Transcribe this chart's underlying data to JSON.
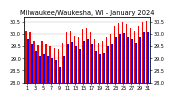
{
  "title": "Milwaukee/Waukesha, WI - January 2024",
  "ylim": [
    28.0,
    30.7
  ],
  "yticks": [
    28.0,
    28.5,
    29.0,
    29.5,
    30.0,
    30.5
  ],
  "days": [
    1,
    2,
    3,
    4,
    5,
    6,
    7,
    8,
    9,
    10,
    11,
    12,
    13,
    14,
    15,
    16,
    17,
    18,
    19,
    20,
    21,
    22,
    23,
    24,
    25,
    26,
    27,
    28,
    29,
    30,
    31
  ],
  "high_values": [
    30.12,
    30.06,
    29.72,
    29.55,
    29.7,
    29.58,
    29.5,
    29.42,
    29.38,
    29.62,
    30.08,
    30.12,
    29.92,
    29.88,
    30.18,
    30.22,
    30.08,
    29.78,
    29.62,
    29.72,
    29.88,
    29.98,
    30.32,
    30.42,
    30.48,
    30.38,
    30.22,
    30.12,
    30.32,
    30.48,
    30.52
  ],
  "low_values": [
    29.78,
    29.58,
    29.28,
    29.08,
    29.18,
    29.08,
    29.02,
    28.92,
    28.65,
    29.08,
    29.58,
    29.68,
    29.48,
    29.38,
    29.72,
    29.78,
    29.58,
    29.28,
    29.18,
    29.22,
    29.48,
    29.58,
    29.88,
    29.98,
    30.02,
    29.88,
    29.78,
    29.62,
    29.88,
    30.08,
    30.08
  ],
  "high_color": "#FF0000",
  "low_color": "#0000FF",
  "background_color": "#ffffff",
  "grid_color": "#bbbbbb",
  "title_fontsize": 4.8,
  "tick_fontsize": 3.5,
  "bar_width": 0.42,
  "xtick_days": [
    1,
    3,
    5,
    7,
    9,
    11,
    13,
    15,
    17,
    19,
    21,
    23,
    25,
    27,
    29,
    31
  ]
}
